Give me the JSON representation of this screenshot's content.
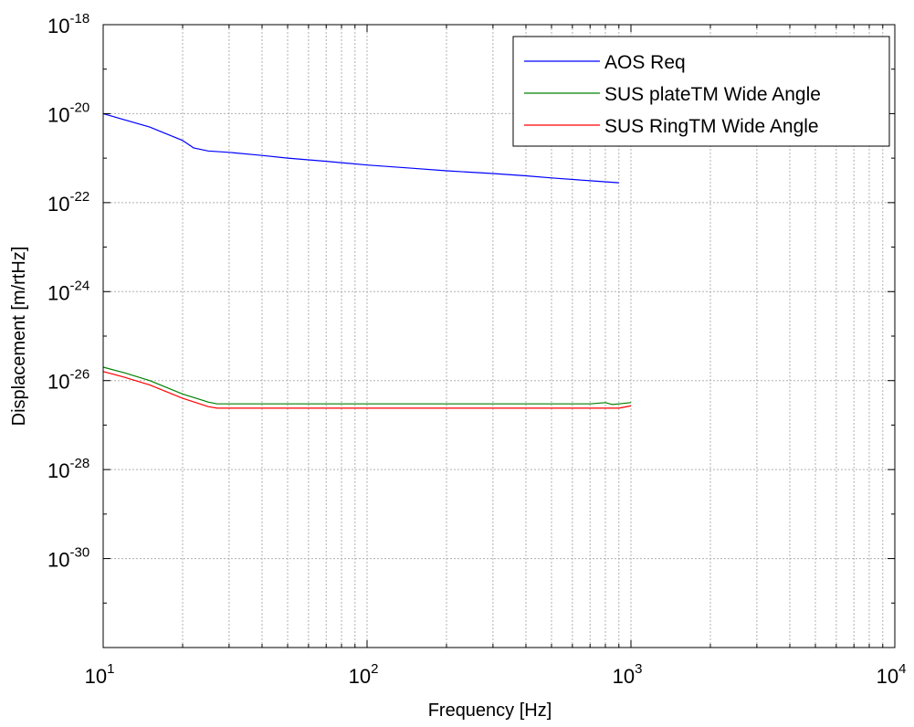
{
  "chart_data": {
    "type": "line",
    "xlabel": "Frequency [Hz]",
    "ylabel": "Displacement [m/rtHz]",
    "xscale": "log",
    "yscale": "log",
    "xlim": [
      10,
      10000
    ],
    "ylim": [
      1e-32,
      1e-18
    ],
    "grid": true,
    "legend_position": "top-right",
    "x_ticks": [
      {
        "value": 10,
        "base": "10",
        "exp": "1"
      },
      {
        "value": 100,
        "base": "10",
        "exp": "2"
      },
      {
        "value": 1000,
        "base": "10",
        "exp": "3"
      },
      {
        "value": 10000,
        "base": "10",
        "exp": "4"
      }
    ],
    "y_ticks": [
      {
        "value": 1e-18,
        "base": "10",
        "exp": "-18"
      },
      {
        "value": 1e-20,
        "base": "10",
        "exp": "-20"
      },
      {
        "value": 1e-22,
        "base": "10",
        "exp": "-22"
      },
      {
        "value": 1e-24,
        "base": "10",
        "exp": "-24"
      },
      {
        "value": 1e-26,
        "base": "10",
        "exp": "-26"
      },
      {
        "value": 1e-28,
        "base": "10",
        "exp": "-28"
      },
      {
        "value": 1e-30,
        "base": "10",
        "exp": "-30"
      }
    ],
    "series": [
      {
        "name": "AOS Req",
        "color": "#0000ff",
        "x": [
          10,
          15,
          20,
          22,
          25,
          30,
          40,
          50,
          70,
          100,
          150,
          200,
          300,
          400,
          500,
          700,
          900
        ],
        "y": [
          1e-20,
          5e-21,
          2.5e-21,
          1.7e-21,
          1.45e-21,
          1.35e-21,
          1.15e-21,
          1e-21,
          8.5e-22,
          7e-22,
          5.9e-22,
          5.2e-22,
          4.5e-22,
          4e-22,
          3.6e-22,
          3.1e-22,
          2.8e-22
        ]
      },
      {
        "name": "SUS plateTM Wide Angle",
        "color": "#008000",
        "x": [
          10,
          12,
          15,
          20,
          25,
          27,
          50,
          100,
          200,
          500,
          700,
          800,
          850,
          900,
          1000
        ],
        "y": [
          2e-26,
          1.5e-26,
          1e-26,
          5e-27,
          3.3e-27,
          3e-27,
          3e-27,
          3e-27,
          3e-27,
          3e-27,
          3e-27,
          3.2e-27,
          2.9e-27,
          3e-27,
          3.2e-27
        ]
      },
      {
        "name": "SUS RingTM Wide Angle",
        "color": "#ff0000",
        "x": [
          10,
          12,
          15,
          20,
          25,
          27,
          50,
          100,
          200,
          500,
          900,
          1000
        ],
        "y": [
          1.6e-26,
          1.2e-26,
          8e-27,
          4e-27,
          2.6e-27,
          2.4e-27,
          2.4e-27,
          2.4e-27,
          2.4e-27,
          2.4e-27,
          2.4e-27,
          2.7e-27
        ]
      }
    ]
  }
}
